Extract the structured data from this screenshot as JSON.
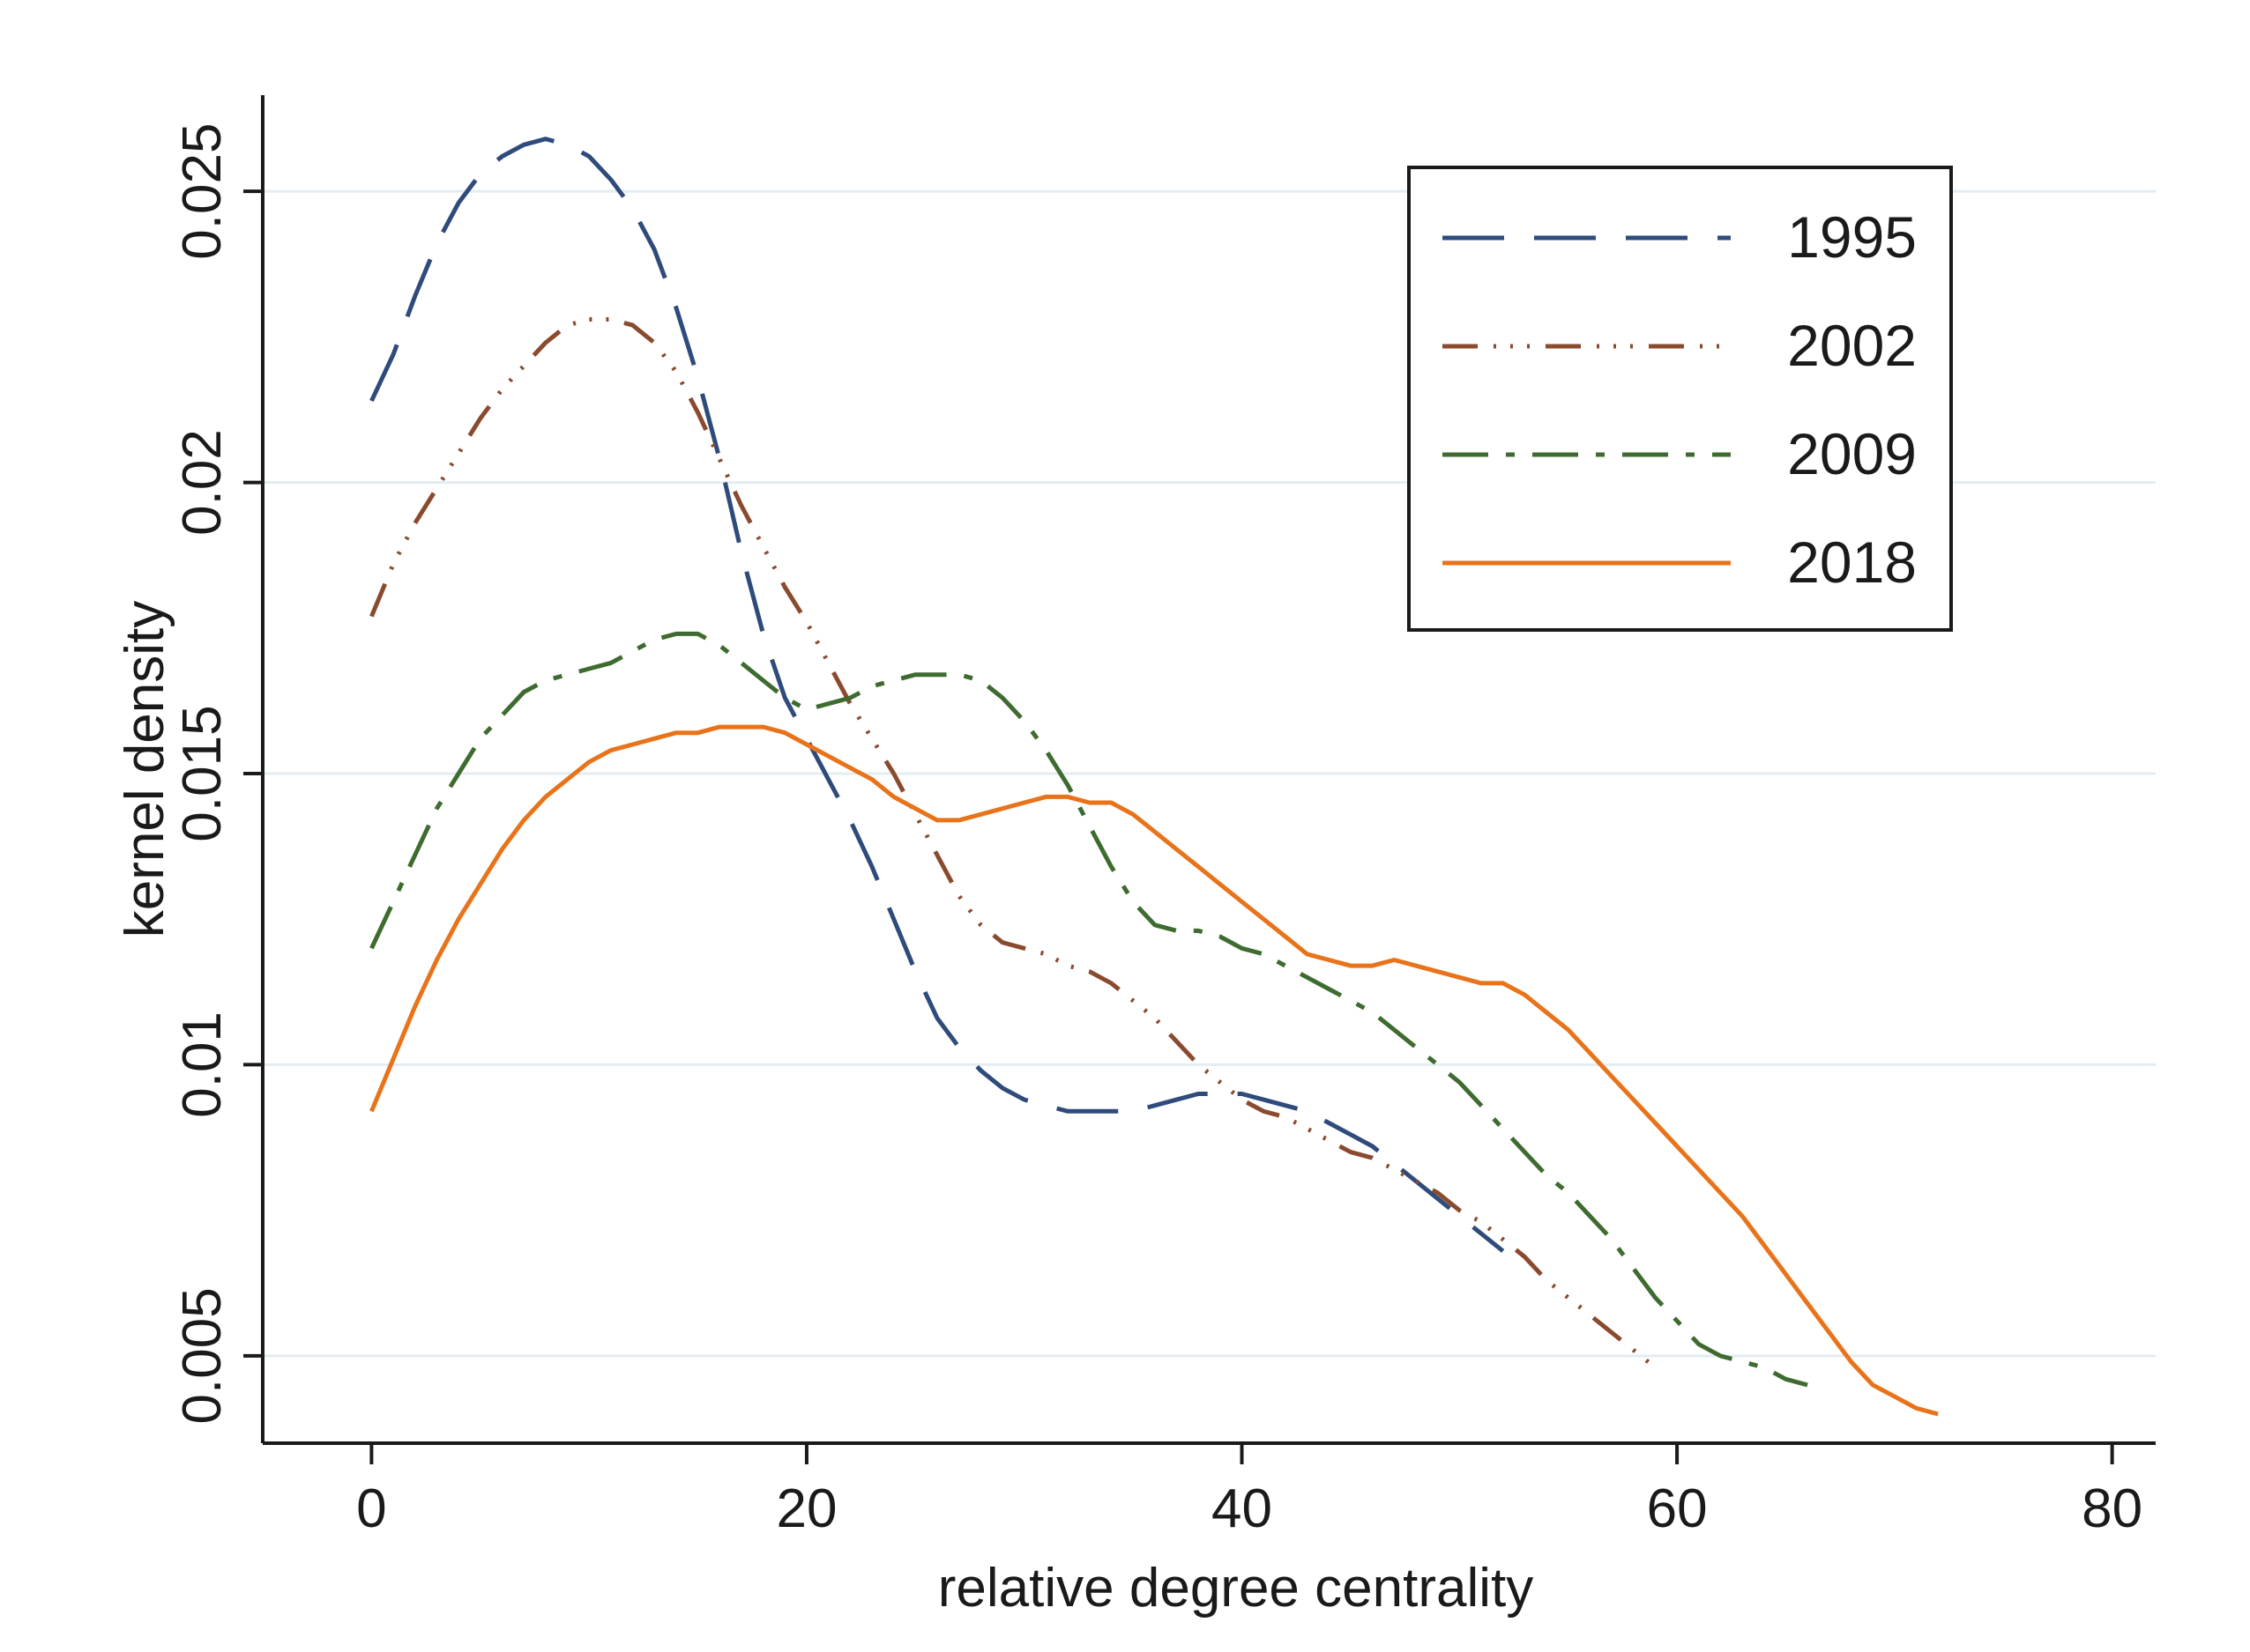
{
  "chart_data": {
    "type": "line",
    "title": "",
    "xlabel": "relative degree centrality",
    "ylabel": "kernel density",
    "xlim": [
      -5,
      82
    ],
    "ylim": [
      0.0035,
      0.0265
    ],
    "xticks": [
      0,
      20,
      40,
      60,
      80
    ],
    "xtick_labels": [
      "0",
      "20",
      "40",
      "60",
      "80"
    ],
    "yticks": [
      0.005,
      0.01,
      0.015,
      0.02,
      0.025
    ],
    "ytick_labels": [
      "0.005",
      "0.01",
      "0.015",
      "0.02",
      "0.025"
    ],
    "grid": true,
    "legend_position": "top-right",
    "series": [
      {
        "name": "1995",
        "color": "#2f4b7c",
        "dash": "long-dash",
        "x": [
          0,
          1,
          2,
          3,
          4,
          5,
          6,
          7,
          8,
          9,
          10,
          11,
          12,
          13,
          14,
          15,
          16,
          17,
          18,
          19,
          20,
          21,
          22,
          23,
          24,
          25,
          26,
          27,
          28,
          29,
          30,
          31,
          32,
          33,
          34,
          35,
          36,
          37,
          38,
          39,
          40,
          41,
          42,
          43,
          44,
          45,
          46,
          47,
          48,
          49,
          50,
          51,
          52
        ],
        "y": [
          0.0214,
          0.0222,
          0.0232,
          0.0241,
          0.0248,
          0.0253,
          0.0256,
          0.0258,
          0.0259,
          0.0258,
          0.0256,
          0.0252,
          0.0247,
          0.024,
          0.023,
          0.0218,
          0.0204,
          0.0188,
          0.0174,
          0.0163,
          0.0156,
          0.0149,
          0.0142,
          0.0134,
          0.0125,
          0.0116,
          0.0108,
          0.0103,
          0.0099,
          0.0096,
          0.0094,
          0.0093,
          0.0092,
          0.0092,
          0.0092,
          0.0092,
          0.0093,
          0.0094,
          0.0095,
          0.0095,
          0.0095,
          0.0094,
          0.0093,
          0.0092,
          0.009,
          0.0088,
          0.0086,
          0.0083,
          0.008,
          0.0077,
          0.0074,
          0.0071,
          0.0068
        ]
      },
      {
        "name": "2002",
        "color": "#8a4a2e",
        "dash": "dash-dot-dot",
        "x": [
          0,
          1,
          2,
          3,
          4,
          5,
          6,
          7,
          8,
          9,
          10,
          11,
          12,
          13,
          14,
          15,
          16,
          17,
          18,
          19,
          20,
          21,
          22,
          23,
          24,
          25,
          26,
          27,
          28,
          29,
          30,
          31,
          32,
          33,
          34,
          35,
          36,
          37,
          38,
          39,
          40,
          41,
          42,
          43,
          44,
          45,
          46,
          47,
          48,
          49,
          50,
          51,
          52,
          53,
          54,
          55,
          56,
          57,
          58,
          59
        ],
        "y": [
          0.0177,
          0.0186,
          0.0193,
          0.0199,
          0.0205,
          0.0211,
          0.0216,
          0.022,
          0.0224,
          0.0227,
          0.0228,
          0.0228,
          0.0227,
          0.0224,
          0.0219,
          0.0212,
          0.0204,
          0.0196,
          0.0189,
          0.0182,
          0.0176,
          0.0169,
          0.0162,
          0.0156,
          0.015,
          0.0143,
          0.0136,
          0.0129,
          0.0124,
          0.0121,
          0.012,
          0.0119,
          0.0117,
          0.0116,
          0.0114,
          0.0111,
          0.0108,
          0.0104,
          0.01,
          0.0097,
          0.0094,
          0.0092,
          0.0091,
          0.0089,
          0.0087,
          0.0085,
          0.0084,
          0.0082,
          0.008,
          0.0078,
          0.0075,
          0.0073,
          0.007,
          0.0067,
          0.0063,
          0.006,
          0.0057,
          0.0054,
          0.0051,
          0.0048
        ]
      },
      {
        "name": "2009",
        "color": "#3e6b2f",
        "dash": "dash-dot",
        "x": [
          0,
          1,
          2,
          3,
          4,
          5,
          6,
          7,
          8,
          9,
          10,
          11,
          12,
          13,
          14,
          15,
          16,
          17,
          18,
          19,
          20,
          21,
          22,
          23,
          24,
          25,
          26,
          27,
          28,
          29,
          30,
          31,
          32,
          33,
          34,
          35,
          36,
          37,
          38,
          39,
          40,
          41,
          42,
          43,
          44,
          45,
          46,
          47,
          48,
          49,
          50,
          51,
          52,
          53,
          54,
          55,
          56,
          57,
          58,
          59,
          60,
          61,
          62,
          63,
          64,
          65,
          66
        ],
        "y": [
          0.012,
          0.0128,
          0.0136,
          0.0144,
          0.015,
          0.0156,
          0.016,
          0.0164,
          0.0166,
          0.0167,
          0.0168,
          0.0169,
          0.0171,
          0.0173,
          0.0174,
          0.0174,
          0.0172,
          0.0169,
          0.0166,
          0.0163,
          0.0161,
          0.0162,
          0.0163,
          0.0165,
          0.0166,
          0.0167,
          0.0167,
          0.0167,
          0.0166,
          0.0163,
          0.0159,
          0.0154,
          0.0148,
          0.0141,
          0.0134,
          0.0128,
          0.0124,
          0.0123,
          0.0123,
          0.0122,
          0.012,
          0.0119,
          0.0117,
          0.0115,
          0.0113,
          0.0111,
          0.0109,
          0.0106,
          0.0103,
          0.01,
          0.0097,
          0.0093,
          0.0089,
          0.0085,
          0.0081,
          0.0078,
          0.0074,
          0.007,
          0.0065,
          0.006,
          0.0056,
          0.0052,
          0.005,
          0.0049,
          0.0048,
          0.0046,
          0.0045
        ]
      },
      {
        "name": "2018",
        "color": "#e8731a",
        "dash": "solid",
        "x": [
          0,
          1,
          2,
          3,
          4,
          5,
          6,
          7,
          8,
          9,
          10,
          11,
          12,
          13,
          14,
          15,
          16,
          17,
          18,
          19,
          20,
          21,
          22,
          23,
          24,
          25,
          26,
          27,
          28,
          29,
          30,
          31,
          32,
          33,
          34,
          35,
          36,
          37,
          38,
          39,
          40,
          41,
          42,
          43,
          44,
          45,
          46,
          47,
          48,
          49,
          50,
          51,
          52,
          53,
          54,
          55,
          56,
          57,
          58,
          59,
          60,
          61,
          62,
          63,
          64,
          65,
          66,
          67,
          68,
          69,
          70,
          71,
          72
        ],
        "y": [
          0.0092,
          0.0101,
          0.011,
          0.0118,
          0.0125,
          0.0131,
          0.0137,
          0.0142,
          0.0146,
          0.0149,
          0.0152,
          0.0154,
          0.0155,
          0.0156,
          0.0157,
          0.0157,
          0.0158,
          0.0158,
          0.0158,
          0.0157,
          0.0155,
          0.0153,
          0.0151,
          0.0149,
          0.0146,
          0.0144,
          0.0142,
          0.0142,
          0.0143,
          0.0144,
          0.0145,
          0.0146,
          0.0146,
          0.0145,
          0.0145,
          0.0143,
          0.014,
          0.0137,
          0.0134,
          0.0131,
          0.0128,
          0.0125,
          0.0122,
          0.0119,
          0.0118,
          0.0117,
          0.0117,
          0.0118,
          0.0117,
          0.0116,
          0.0115,
          0.0114,
          0.0114,
          0.0112,
          0.0109,
          0.0106,
          0.0102,
          0.0098,
          0.0094,
          0.009,
          0.0086,
          0.0082,
          0.0078,
          0.0074,
          0.0069,
          0.0064,
          0.0059,
          0.0054,
          0.0049,
          0.0045,
          0.0043,
          0.0041,
          0.004
        ]
      }
    ]
  }
}
